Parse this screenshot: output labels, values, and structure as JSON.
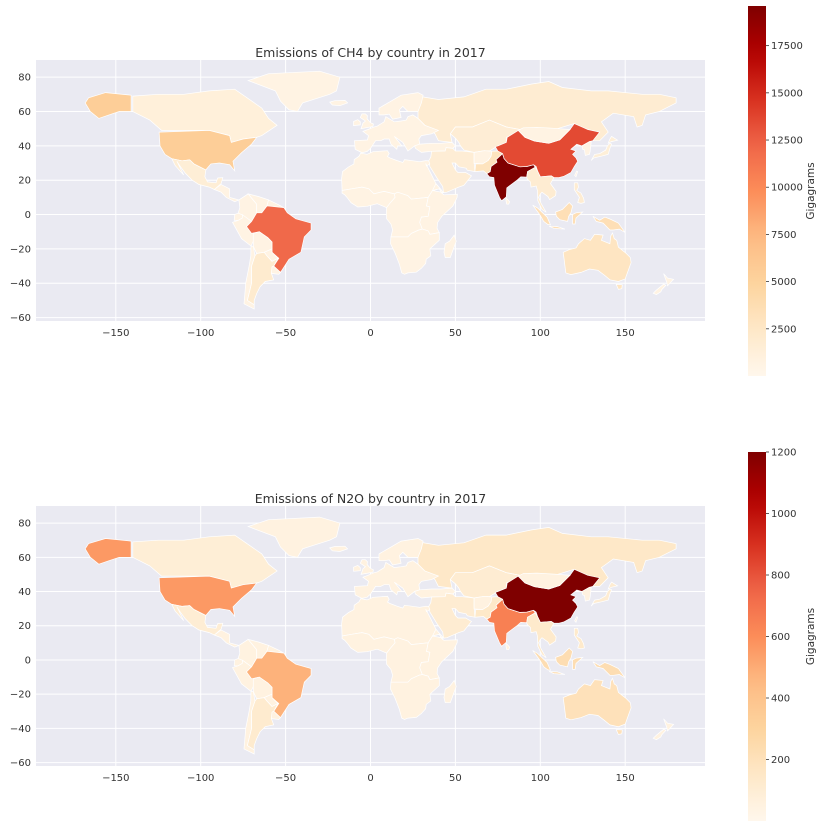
{
  "chart_data": [
    {
      "type": "choropleth",
      "title": "Emissions of CH4 by country in 2017",
      "colorbar_label": "Gigagrams",
      "colorbar_ticks": [
        2500,
        5000,
        7500,
        10000,
        12500,
        15000,
        17500
      ],
      "colorbar_range": [
        0,
        19600
      ],
      "xlim": [
        -197,
        197
      ],
      "ylim": [
        -62,
        90
      ],
      "x_ticks": [
        -150,
        -100,
        -50,
        0,
        50,
        100,
        150
      ],
      "y_ticks": [
        -60,
        -40,
        -20,
        0,
        20,
        40,
        60,
        80
      ],
      "grid": true,
      "colormap": "OrRd",
      "countries": [
        {
          "name": "India",
          "value": 19600
        },
        {
          "name": "China",
          "value": 13500
        },
        {
          "name": "Brazil",
          "value": 12000
        },
        {
          "name": "United States",
          "value": 5500
        },
        {
          "name": "Alaska",
          "value": 5500
        },
        {
          "name": "Russia",
          "value": 1800
        },
        {
          "name": "Australia",
          "value": 2800
        },
        {
          "name": "Argentina",
          "value": 2000
        },
        {
          "name": "Indonesia",
          "value": 3500
        },
        {
          "name": "Pakistan",
          "value": 3000
        },
        {
          "name": "Canada",
          "value": 1200
        },
        {
          "name": "Mexico",
          "value": 1500
        }
      ]
    },
    {
      "type": "choropleth",
      "title": "Emissions of N2O by country in 2017",
      "colorbar_label": "Gigagrams",
      "colorbar_ticks": [
        200,
        400,
        600,
        800,
        1000,
        1200
      ],
      "colorbar_range": [
        0,
        1200
      ],
      "xlim": [
        -197,
        197
      ],
      "ylim": [
        -62,
        90
      ],
      "x_ticks": [
        -150,
        -100,
        -50,
        0,
        50,
        100,
        150
      ],
      "y_ticks": [
        -60,
        -40,
        -20,
        0,
        20,
        40,
        60,
        80
      ],
      "grid": true,
      "colormap": "OrRd",
      "countries": [
        {
          "name": "China",
          "value": 1200
        },
        {
          "name": "India",
          "value": 650
        },
        {
          "name": "United States",
          "value": 560
        },
        {
          "name": "Alaska",
          "value": 560
        },
        {
          "name": "Brazil",
          "value": 480
        },
        {
          "name": "Russia",
          "value": 150
        },
        {
          "name": "Australia",
          "value": 200
        },
        {
          "name": "Argentina",
          "value": 120
        },
        {
          "name": "Indonesia",
          "value": 230
        },
        {
          "name": "Canada",
          "value": 90
        },
        {
          "name": "Mexico",
          "value": 100
        }
      ]
    }
  ],
  "colors": {
    "ocean": "#eaeaf2",
    "grid": "#ffffff",
    "border": "#ffffff"
  }
}
